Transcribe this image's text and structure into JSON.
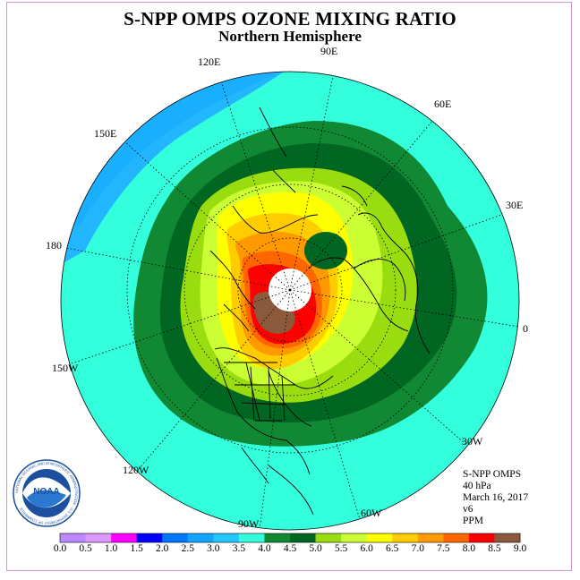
{
  "header": {
    "title": "S-NPP OMPS OZONE MIXING RATIO",
    "subtitle": "Northern Hemisphere"
  },
  "map": {
    "projection": "north-polar-stereographic",
    "longitude_labels": [
      "90E",
      "120E",
      "60E",
      "150E",
      "30E",
      "180",
      "0",
      "150W",
      "30W",
      "120W",
      "60W",
      "90W"
    ],
    "features": [
      "coastlines",
      "country-borders",
      "US state borders",
      "lat-lon graticule"
    ],
    "center_no_data": true,
    "field_summary": "Ozone maximum (8.0-9.0 ppm) over Arctic north of Canada/Greenland; 4.0-5.5 ppm ring over mid-latitudes; 3.0-4.0 ppm in tropics; local low near Scandinavia",
    "colors": {
      "background_tropics": "#33ffdd",
      "low_blue": "#22b2ff"
    }
  },
  "info": {
    "product": "S-NPP OMPS",
    "level": "40 hPa",
    "date": "March 16, 2017",
    "version": "v6",
    "units": "PPM"
  },
  "colorbar": {
    "ticks": [
      "0.0",
      "0.5",
      "1.0",
      "1.5",
      "2.0",
      "2.5",
      "3.0",
      "3.5",
      "4.0",
      "4.5",
      "5.0",
      "5.5",
      "6.0",
      "6.5",
      "7.0",
      "7.5",
      "8.0",
      "8.5",
      "9.0"
    ],
    "colors": [
      "#bb88ff",
      "#dd99ff",
      "#ff00ff",
      "#0000ff",
      "#0077ff",
      "#11a5ff",
      "#22c9ff",
      "#33ffdd",
      "#118833",
      "#006622",
      "#99dd11",
      "#ccff33",
      "#ffff00",
      "#ffcc00",
      "#ff9900",
      "#ff6600",
      "#ff0000",
      "#8b5a3c"
    ]
  },
  "logo": {
    "text": "NOAA",
    "ring_text": "NATIONAL OCEANIC AND ATMOSPHERIC ADMINISTRATION · U.S. DEPARTMENT OF COMMERCE"
  }
}
